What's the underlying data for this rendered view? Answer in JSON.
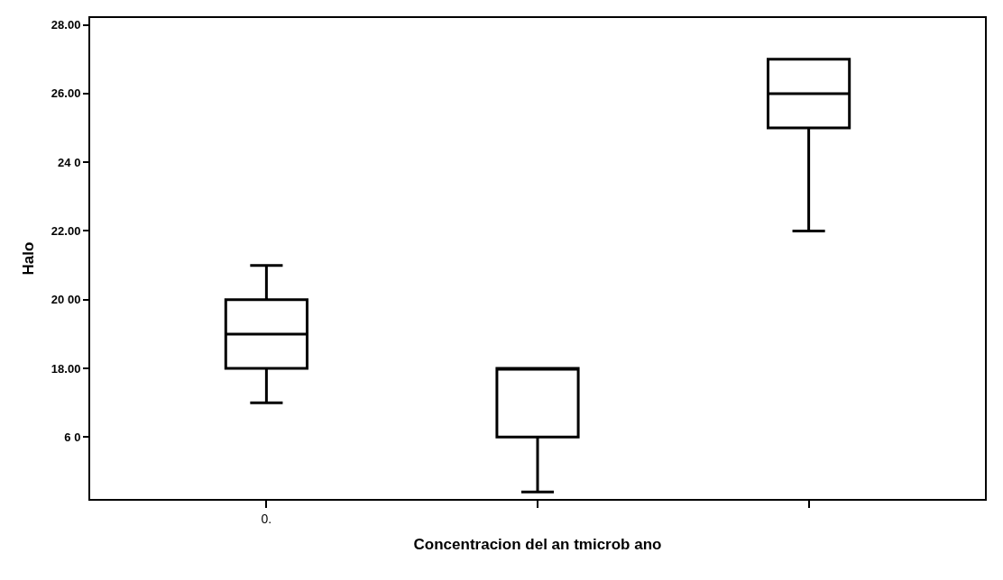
{
  "chart_data": {
    "type": "box",
    "xlabel": "Concentracion del an tmicrob ano",
    "ylabel": "Halo",
    "categories": [
      "0.",
      null,
      null
    ],
    "boxes": [
      {
        "low": 17,
        "q1": 18,
        "median": 19,
        "q3": 20,
        "high": 21
      },
      {
        "low": 14.4,
        "q1": 16,
        "median": 18,
        "q3": 18,
        "high": 18
      },
      {
        "low": 22,
        "q1": 25,
        "median": 26,
        "q3": 27,
        "high": 27
      }
    ],
    "color": "#000000",
    "ylim": [
      14.2,
      28.2
    ],
    "yticks": [
      {
        "value": 16,
        "label": "6 0"
      },
      {
        "value": 18,
        "label": "18.00"
      },
      {
        "value": 20,
        "label": "20 00"
      },
      {
        "value": 22,
        "label": "22.00"
      },
      {
        "value": 24,
        "label": "24 0"
      },
      {
        "value": 26,
        "label": "26.00"
      },
      {
        "value": 28,
        "label": "28.00"
      }
    ]
  }
}
